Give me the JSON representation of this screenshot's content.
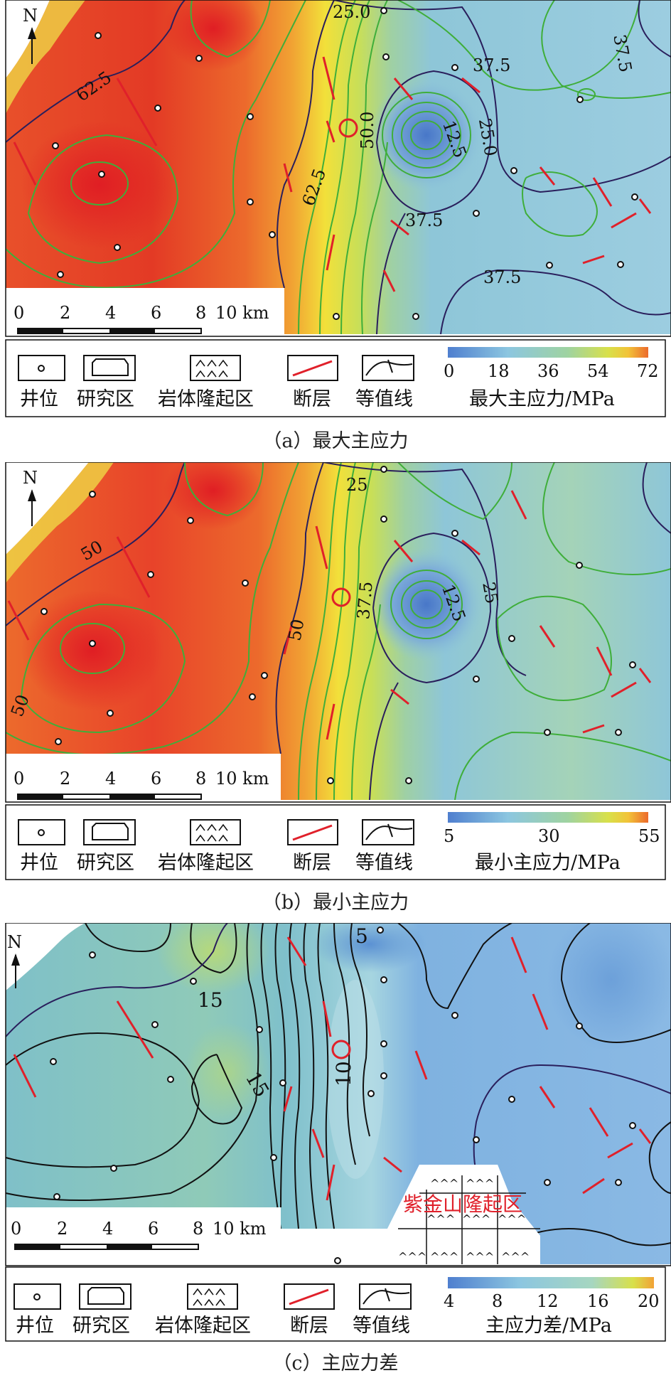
{
  "panels": [
    {
      "id": "a",
      "north": "N",
      "scale": {
        "ticks": [
          "0",
          "2",
          "4",
          "6",
          "8",
          "10 km"
        ]
      },
      "contour_labels": [
        "25.0",
        "62.5",
        "37.5",
        "37.5",
        "12.5",
        "25.0",
        "50.0",
        "62.5",
        "37.5",
        "37.5"
      ],
      "legend": {
        "well": "井位",
        "study": "研究区",
        "uplift": "岩体隆起区",
        "fault": "断层",
        "contour": "等值线"
      },
      "colorbar": {
        "ticks": [
          "0",
          "18",
          "36",
          "54",
          "72"
        ],
        "title": "最大主应力/MPa"
      },
      "caption": "（a）最大主应力"
    },
    {
      "id": "b",
      "north": "N",
      "scale": {
        "ticks": [
          "0",
          "2",
          "4",
          "6",
          "8",
          "10 km"
        ]
      },
      "contour_labels": [
        "25",
        "50",
        "12.5",
        "25",
        "37.5",
        "50",
        "50"
      ],
      "legend": {
        "well": "井位",
        "study": "研究区",
        "uplift": "岩体隆起区",
        "fault": "断层",
        "contour": "等值线"
      },
      "colorbar": {
        "ticks": [
          "5",
          "30",
          "55"
        ],
        "title": "最小主应力/MPa"
      },
      "caption": "（b）最小主应力"
    },
    {
      "id": "c",
      "north": "N",
      "scale": {
        "ticks": [
          "0",
          "2",
          "4",
          "6",
          "8",
          "10 km"
        ]
      },
      "contour_labels": [
        "5",
        "15",
        "15",
        "10"
      ],
      "uplift_label": "紫金山隆起区",
      "legend": {
        "well": "井位",
        "study": "研究区",
        "uplift": "岩体隆起区",
        "fault": "断层",
        "contour": "等值线"
      },
      "colorbar": {
        "ticks": [
          "4",
          "8",
          "12",
          "16",
          "20"
        ],
        "title": "主应力差/MPa"
      },
      "caption": "（c）主应力差"
    }
  ],
  "colors": {
    "fault": "#e0202a",
    "contour_green": "#3fae3a",
    "contour_dark": "#2a1f5c",
    "red": "#e52a22",
    "orange": "#ef7a2a",
    "yellow": "#f3e83a",
    "blue": "#7bb4e0",
    "deep_blue": "#4f86cf"
  }
}
